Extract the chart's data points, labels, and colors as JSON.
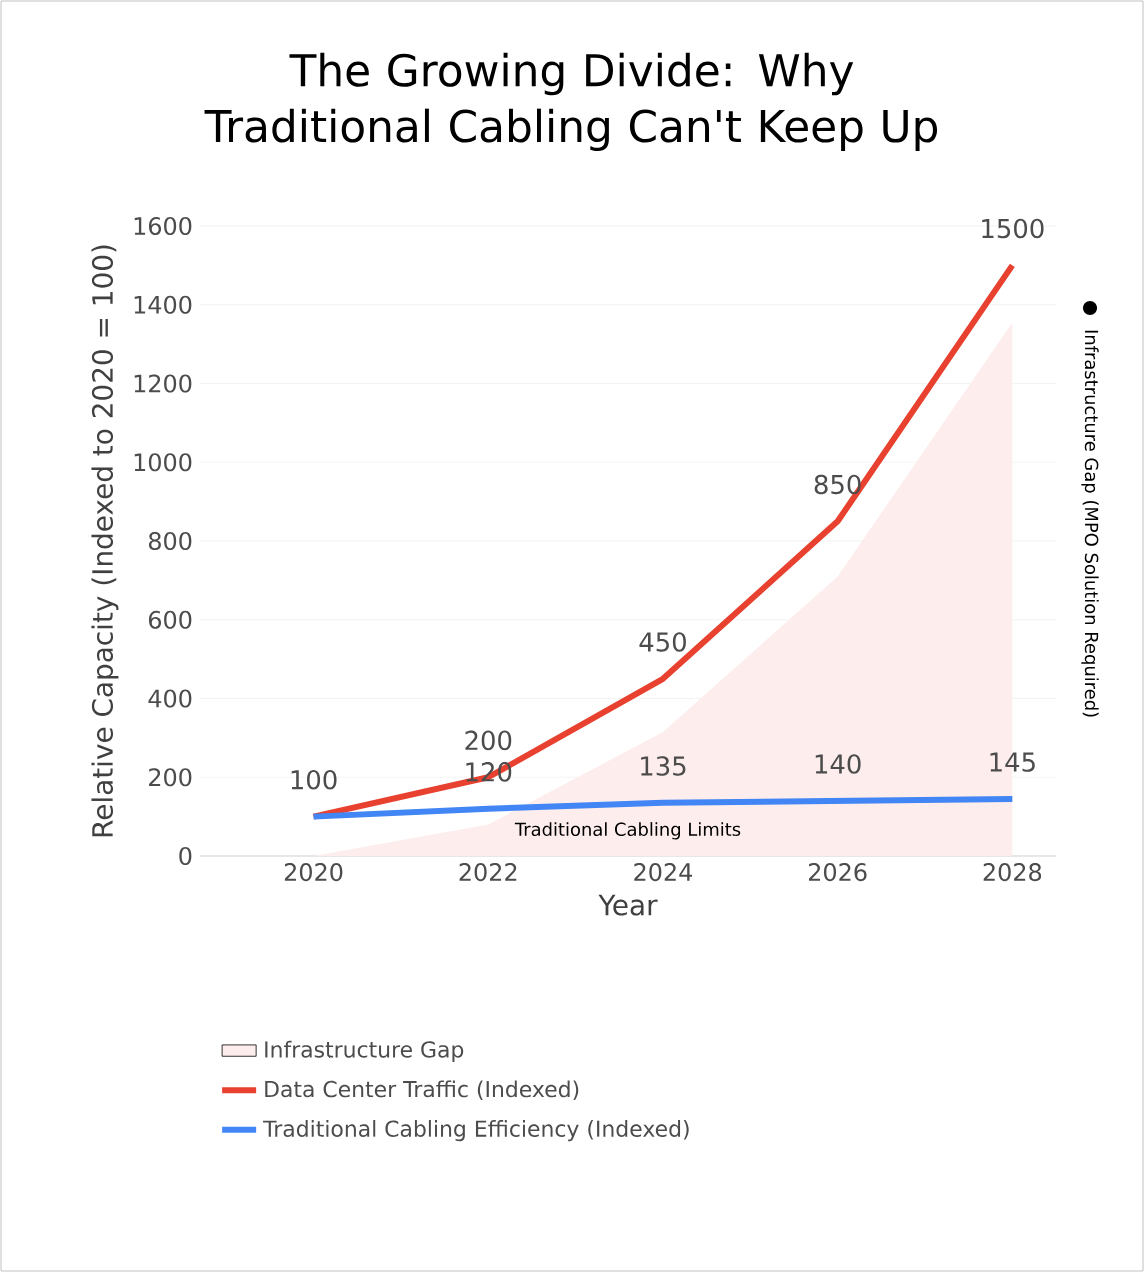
{
  "chart_data": {
    "type": "line",
    "title": "The Growing Divide: Why Traditional Cabling Can't Keep Up",
    "xlabel": "Year",
    "ylabel": "Relative Capacity (Indexed to 2020 = 100)",
    "x": [
      2020,
      2022,
      2024,
      2026,
      2028
    ],
    "series": [
      {
        "name": "Infrastructure Gap",
        "type": "area",
        "color": "#fdeeed",
        "values": [
          0,
          80,
          315,
          710,
          1355
        ]
      },
      {
        "name": "Data Center Traffic (Indexed)",
        "color": "#e8412f",
        "values": [
          100,
          200,
          450,
          850,
          1500
        ],
        "value_labels": [
          "100",
          "200",
          "450",
          "850",
          "1500"
        ]
      },
      {
        "name": "Traditional Cabling Efficiency (Indexed)",
        "color": "#4285f4",
        "values": [
          100,
          120,
          135,
          140,
          145
        ],
        "value_labels": [
          null,
          "120",
          "135",
          "140",
          "145"
        ]
      }
    ],
    "xlim": [
      2018.7,
      2028.5
    ],
    "xticks": [
      2020,
      2022,
      2024,
      2026,
      2028
    ],
    "ylim": [
      0,
      1600
    ],
    "yticks": [
      0,
      200,
      400,
      600,
      800,
      1000,
      1200,
      1400,
      1600
    ],
    "grid": "y",
    "legend": "bottom",
    "annotations": [
      "Traditional Cabling Limits",
      "Infrastructure Gap (MPO Solution Required)"
    ]
  }
}
